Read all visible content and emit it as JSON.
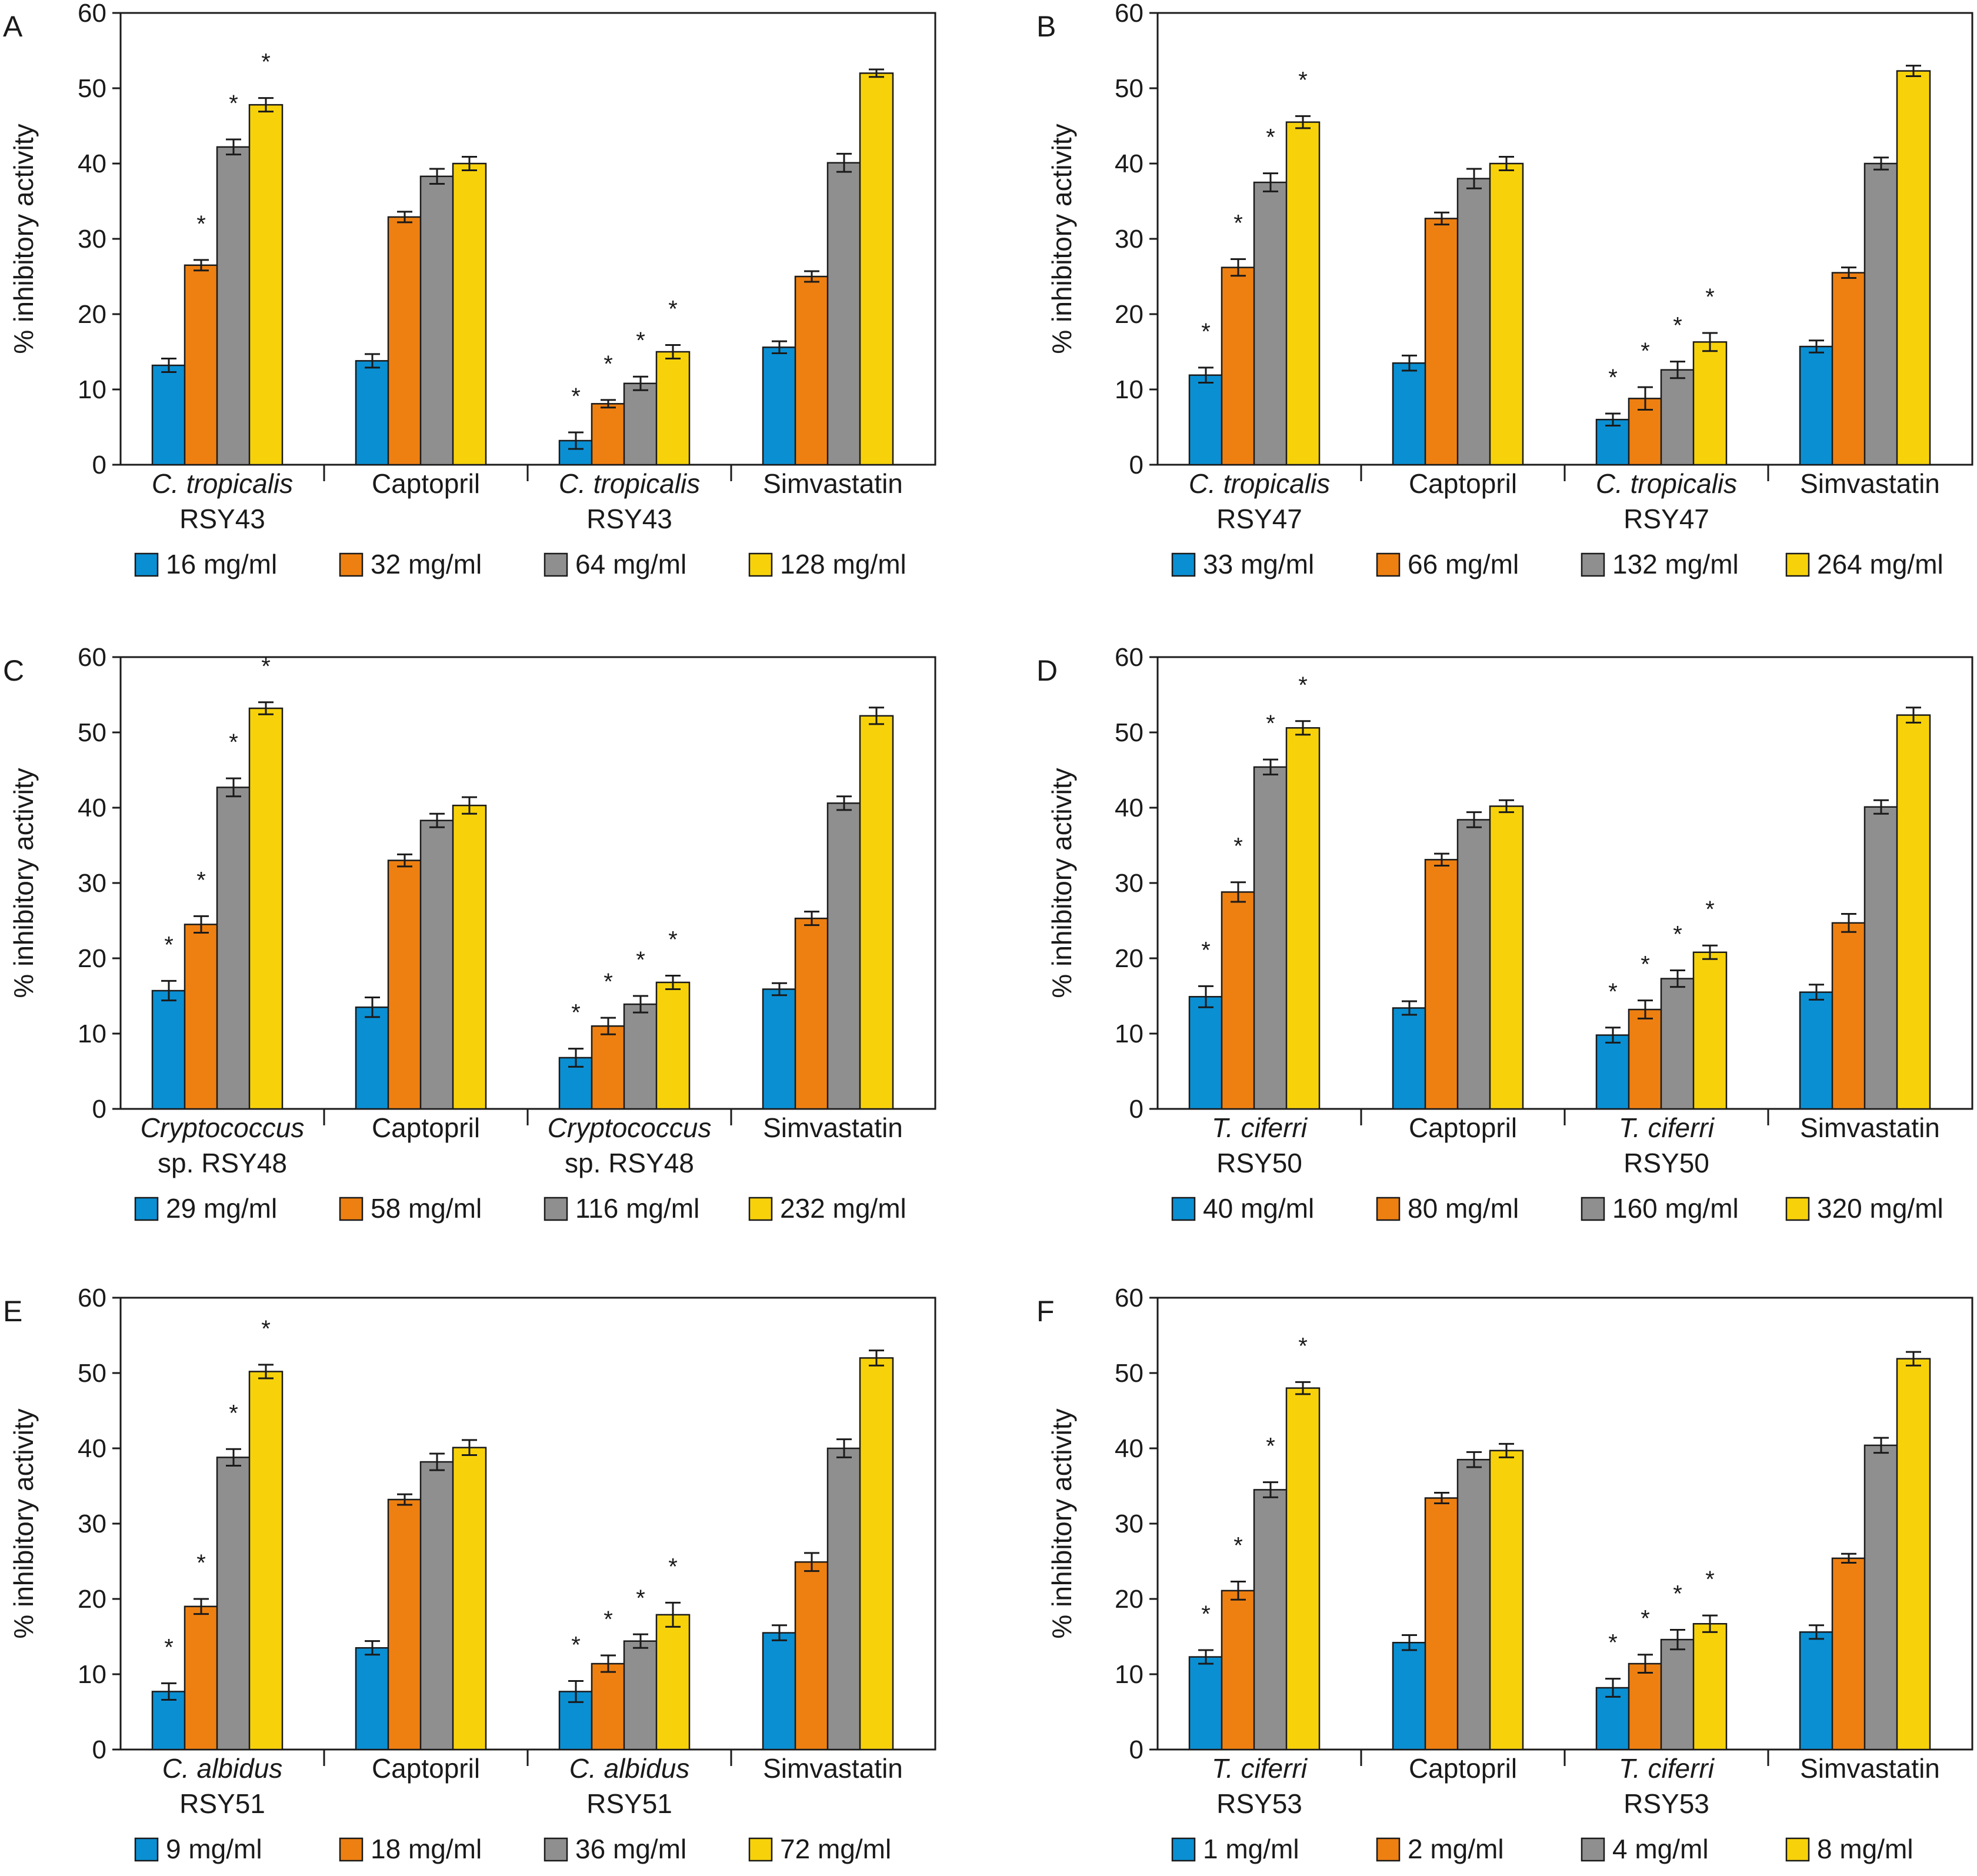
{
  "colors": {
    "blue": "#0a8fd3",
    "orange": "#ee8012",
    "gray": "#8f8f8f",
    "yellow": "#f7d20b",
    "outline": "#1a1a1a"
  },
  "chart_data": [
    {
      "type": "bar",
      "panel": "A",
      "ylabel": "% inhibitory activity",
      "ylim": [
        0,
        60
      ],
      "yticks": [
        0,
        10,
        20,
        30,
        40,
        50,
        60
      ],
      "categories": [
        {
          "line1": "C. tropicalis",
          "line1_italic": true,
          "line2": "RSY43"
        },
        {
          "line1": "Captopril",
          "line1_italic": false,
          "line2": ""
        },
        {
          "line1": "C. tropicalis",
          "line1_italic": true,
          "line2": "RSY43"
        },
        {
          "line1": "Simvastatin",
          "line1_italic": false,
          "line2": ""
        }
      ],
      "series": [
        {
          "name": "16 mg/ml",
          "color": "blue",
          "values": [
            13.2,
            13.8,
            3.2,
            15.6
          ],
          "errors": [
            0.9,
            0.9,
            1.1,
            0.8
          ],
          "sig": [
            false,
            false,
            true,
            false
          ]
        },
        {
          "name": "32 mg/ml",
          "color": "orange",
          "values": [
            26.5,
            32.9,
            8.1,
            25.0
          ],
          "errors": [
            0.7,
            0.7,
            0.5,
            0.7
          ],
          "sig": [
            true,
            false,
            true,
            false
          ]
        },
        {
          "name": "64 mg/ml",
          "color": "gray",
          "values": [
            42.2,
            38.3,
            10.8,
            40.1
          ],
          "errors": [
            1.0,
            1.0,
            0.9,
            1.2
          ],
          "sig": [
            true,
            false,
            true,
            false
          ]
        },
        {
          "name": "128 mg/ml",
          "color": "yellow",
          "values": [
            47.8,
            40.0,
            15.0,
            52.0
          ],
          "errors": [
            0.9,
            0.9,
            0.9,
            0.5
          ],
          "sig": [
            true,
            false,
            true,
            false
          ]
        }
      ]
    },
    {
      "type": "bar",
      "panel": "B",
      "ylabel": "% inhibitory activity",
      "ylim": [
        0,
        60
      ],
      "yticks": [
        0,
        10,
        20,
        30,
        40,
        50,
        60
      ],
      "categories": [
        {
          "line1": "C. tropicalis",
          "line1_italic": true,
          "line2": "RSY47"
        },
        {
          "line1": "Captopril",
          "line1_italic": false,
          "line2": ""
        },
        {
          "line1": "C. tropicalis",
          "line1_italic": true,
          "line2": "RSY47"
        },
        {
          "line1": "Simvastatin",
          "line1_italic": false,
          "line2": ""
        }
      ],
      "series": [
        {
          "name": "33 mg/ml",
          "color": "blue",
          "values": [
            11.9,
            13.5,
            6.0,
            15.7
          ],
          "errors": [
            1.0,
            1.0,
            0.8,
            0.8
          ],
          "sig": [
            true,
            false,
            true,
            false
          ]
        },
        {
          "name": "66 mg/ml",
          "color": "orange",
          "values": [
            26.2,
            32.7,
            8.8,
            25.5
          ],
          "errors": [
            1.1,
            0.8,
            1.5,
            0.7
          ],
          "sig": [
            true,
            false,
            true,
            false
          ]
        },
        {
          "name": "132 mg/ml",
          "color": "gray",
          "values": [
            37.5,
            38.0,
            12.6,
            40.0
          ],
          "errors": [
            1.2,
            1.3,
            1.1,
            0.8
          ],
          "sig": [
            true,
            false,
            true,
            false
          ]
        },
        {
          "name": "264 mg/ml",
          "color": "yellow",
          "values": [
            45.5,
            40.0,
            16.3,
            52.3
          ],
          "errors": [
            0.8,
            0.9,
            1.2,
            0.7
          ],
          "sig": [
            true,
            false,
            true,
            false
          ]
        }
      ]
    },
    {
      "type": "bar",
      "panel": "C",
      "ylabel": "% inhibitory activity",
      "ylim": [
        0,
        60
      ],
      "yticks": [
        0,
        10,
        20,
        30,
        40,
        50,
        60
      ],
      "categories": [
        {
          "line1": "Cryptococcus",
          "line1_italic": true,
          "line2": "sp. RSY48"
        },
        {
          "line1": "Captopril",
          "line1_italic": false,
          "line2": ""
        },
        {
          "line1": "Cryptococcus",
          "line1_italic": true,
          "line2": "sp. RSY48"
        },
        {
          "line1": "Simvastatin",
          "line1_italic": false,
          "line2": ""
        }
      ],
      "series": [
        {
          "name": "29 mg/ml",
          "color": "blue",
          "values": [
            15.7,
            13.5,
            6.8,
            15.9
          ],
          "errors": [
            1.3,
            1.3,
            1.2,
            0.8
          ],
          "sig": [
            true,
            false,
            true,
            false
          ]
        },
        {
          "name": "58 mg/ml",
          "color": "orange",
          "values": [
            24.5,
            33.0,
            11.0,
            25.3
          ],
          "errors": [
            1.1,
            0.8,
            1.1,
            0.9
          ],
          "sig": [
            true,
            false,
            true,
            false
          ]
        },
        {
          "name": "116 mg/ml",
          "color": "gray",
          "values": [
            42.7,
            38.3,
            13.9,
            40.6
          ],
          "errors": [
            1.2,
            0.9,
            1.1,
            0.9
          ],
          "sig": [
            true,
            false,
            true,
            false
          ]
        },
        {
          "name": "232 mg/ml",
          "color": "yellow",
          "values": [
            53.2,
            40.3,
            16.8,
            52.2
          ],
          "errors": [
            0.8,
            1.1,
            0.9,
            1.1
          ],
          "sig": [
            true,
            false,
            true,
            false
          ]
        }
      ]
    },
    {
      "type": "bar",
      "panel": "D",
      "ylabel": "% inhibitory activity",
      "ylim": [
        0,
        60
      ],
      "yticks": [
        0,
        10,
        20,
        30,
        40,
        50,
        60
      ],
      "categories": [
        {
          "line1": "T. ciferri",
          "line1_italic": true,
          "line2": "RSY50"
        },
        {
          "line1": "Captopril",
          "line1_italic": false,
          "line2": ""
        },
        {
          "line1": "T. ciferri",
          "line1_italic": true,
          "line2": "RSY50"
        },
        {
          "line1": "Simvastatin",
          "line1_italic": false,
          "line2": ""
        }
      ],
      "series": [
        {
          "name": "40 mg/ml",
          "color": "blue",
          "values": [
            14.9,
            13.4,
            9.8,
            15.5
          ],
          "errors": [
            1.4,
            0.9,
            1.0,
            1.0
          ],
          "sig": [
            true,
            false,
            true,
            false
          ]
        },
        {
          "name": "80 mg/ml",
          "color": "orange",
          "values": [
            28.8,
            33.1,
            13.2,
            24.7
          ],
          "errors": [
            1.3,
            0.8,
            1.2,
            1.2
          ],
          "sig": [
            true,
            false,
            true,
            false
          ]
        },
        {
          "name": "160 mg/ml",
          "color": "gray",
          "values": [
            45.4,
            38.4,
            17.3,
            40.1
          ],
          "errors": [
            1.0,
            1.0,
            1.1,
            0.9
          ],
          "sig": [
            true,
            false,
            true,
            false
          ]
        },
        {
          "name": "320 mg/ml",
          "color": "yellow",
          "values": [
            50.6,
            40.2,
            20.8,
            52.3
          ],
          "errors": [
            0.9,
            0.8,
            0.9,
            1.0
          ],
          "sig": [
            true,
            false,
            true,
            false
          ]
        }
      ]
    },
    {
      "type": "bar",
      "panel": "E",
      "ylabel": "% inhibitory activity",
      "ylim": [
        0,
        60
      ],
      "yticks": [
        0,
        10,
        20,
        30,
        40,
        50,
        60
      ],
      "categories": [
        {
          "line1": "C. albidus",
          "line1_italic": true,
          "line2": "RSY51"
        },
        {
          "line1": "Captopril",
          "line1_italic": false,
          "line2": ""
        },
        {
          "line1": "C. albidus",
          "line1_italic": true,
          "line2": "RSY51"
        },
        {
          "line1": "Simvastatin",
          "line1_italic": false,
          "line2": ""
        }
      ],
      "series": [
        {
          "name": "9 mg/ml",
          "color": "blue",
          "values": [
            7.7,
            13.5,
            7.7,
            15.5
          ],
          "errors": [
            1.1,
            0.9,
            1.4,
            1.0
          ],
          "sig": [
            true,
            false,
            true,
            false
          ]
        },
        {
          "name": "18 mg/ml",
          "color": "orange",
          "values": [
            19.0,
            33.2,
            11.4,
            24.9
          ],
          "errors": [
            1.0,
            0.7,
            1.1,
            1.2
          ],
          "sig": [
            true,
            false,
            true,
            false
          ]
        },
        {
          "name": "36 mg/ml",
          "color": "gray",
          "values": [
            38.8,
            38.2,
            14.4,
            40.0
          ],
          "errors": [
            1.1,
            1.1,
            0.9,
            1.2
          ],
          "sig": [
            true,
            false,
            true,
            false
          ]
        },
        {
          "name": "72 mg/ml",
          "color": "yellow",
          "values": [
            50.2,
            40.1,
            17.9,
            52.0
          ],
          "errors": [
            0.9,
            1.0,
            1.6,
            1.0
          ],
          "sig": [
            true,
            false,
            true,
            false
          ]
        }
      ]
    },
    {
      "type": "bar",
      "panel": "F",
      "ylabel": "% inhibitory activity",
      "ylim": [
        0,
        60
      ],
      "yticks": [
        0,
        10,
        20,
        30,
        40,
        50,
        60
      ],
      "categories": [
        {
          "line1": "T. ciferri",
          "line1_italic": true,
          "line2": "RSY53"
        },
        {
          "line1": "Captopril",
          "line1_italic": false,
          "line2": ""
        },
        {
          "line1": "T. ciferri",
          "line1_italic": true,
          "line2": "RSY53"
        },
        {
          "line1": "Simvastatin",
          "line1_italic": false,
          "line2": ""
        }
      ],
      "series": [
        {
          "name": "1 mg/ml",
          "color": "blue",
          "values": [
            12.3,
            14.2,
            8.2,
            15.6
          ],
          "errors": [
            0.9,
            1.0,
            1.2,
            0.9
          ],
          "sig": [
            true,
            false,
            true,
            false
          ]
        },
        {
          "name": "2 mg/ml",
          "color": "orange",
          "values": [
            21.1,
            33.4,
            11.4,
            25.4
          ],
          "errors": [
            1.2,
            0.7,
            1.2,
            0.6
          ],
          "sig": [
            true,
            false,
            true,
            false
          ]
        },
        {
          "name": "4 mg/ml",
          "color": "gray",
          "values": [
            34.5,
            38.5,
            14.6,
            40.4
          ],
          "errors": [
            1.0,
            1.0,
            1.3,
            1.0
          ],
          "sig": [
            true,
            false,
            true,
            false
          ]
        },
        {
          "name": "8 mg/ml",
          "color": "yellow",
          "values": [
            48.0,
            39.7,
            16.7,
            51.9
          ],
          "errors": [
            0.8,
            0.9,
            1.1,
            0.9
          ],
          "sig": [
            true,
            false,
            true,
            false
          ]
        }
      ]
    }
  ],
  "significance_marker": "*"
}
